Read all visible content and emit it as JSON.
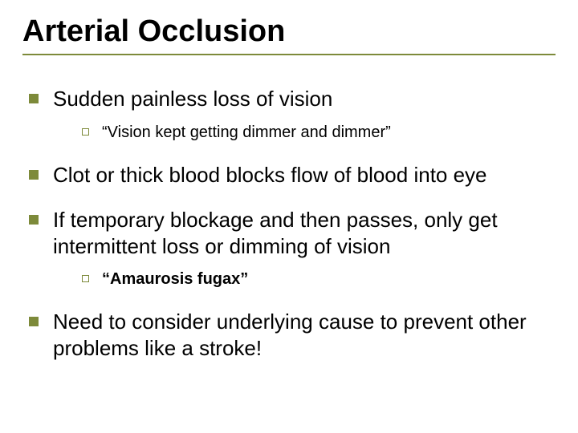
{
  "title": "Arterial Occlusion",
  "colors": {
    "accent": "#7d8a3a",
    "text": "#000000",
    "background": "#ffffff"
  },
  "typography": {
    "title_fontsize": 38,
    "lvl1_fontsize": 26,
    "lvl2_fontsize": 20,
    "font_family": "Arial"
  },
  "bullets": {
    "b1": "Sudden painless loss of vision",
    "b1_sub1": "“Vision kept getting dimmer and dimmer”",
    "b2": "Clot or thick blood blocks flow of blood into eye",
    "b3": "If temporary blockage and then passes, only get intermittent loss or dimming of vision",
    "b3_sub1": "“Amaurosis fugax”",
    "b4": "Need to consider underlying cause to prevent other problems like a stroke!"
  }
}
